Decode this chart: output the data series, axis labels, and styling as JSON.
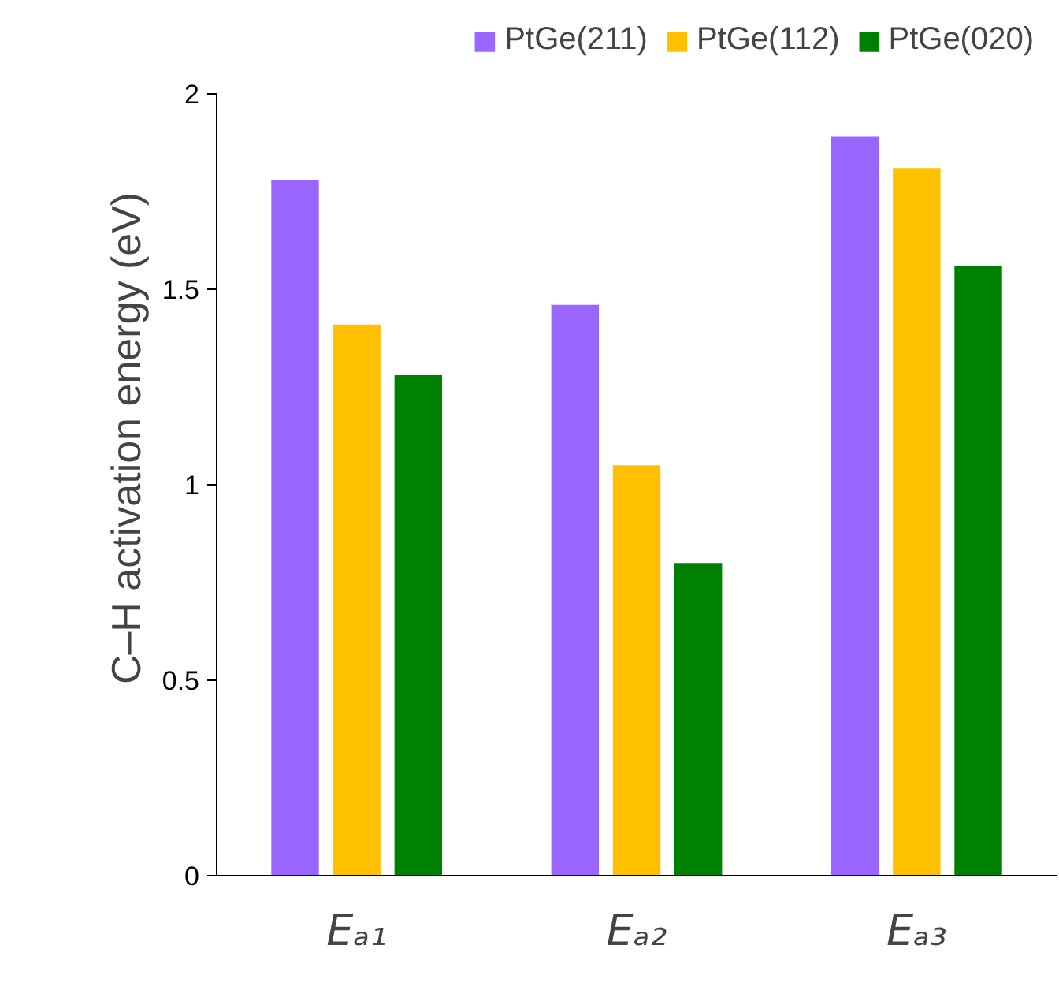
{
  "chart_data": {
    "type": "bar",
    "ylabel": "C–H activation energy (eV)",
    "categories": [
      "Eₐ₁",
      "Eₐ₂",
      "Eₐ₃"
    ],
    "series": [
      {
        "name": "PtGe(211)",
        "color": "#9966ff",
        "values": [
          1.78,
          1.46,
          1.89
        ]
      },
      {
        "name": "PtGe(112)",
        "color": "#ffc000",
        "values": [
          1.41,
          1.05,
          1.81
        ]
      },
      {
        "name": "PtGe(020)",
        "color": "#008000",
        "values": [
          1.28,
          0.8,
          1.56
        ]
      }
    ],
    "ylim": [
      0,
      2
    ],
    "yticks": [
      0,
      0.5,
      1,
      1.5,
      2
    ],
    "grid": false,
    "legend": "top"
  }
}
